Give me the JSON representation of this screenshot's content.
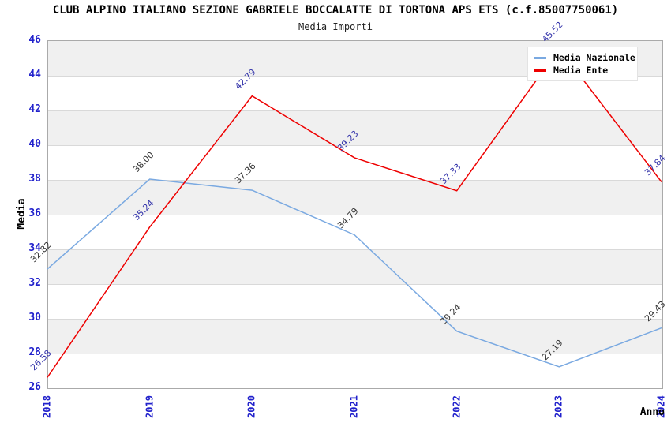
{
  "header": {
    "title": "CLUB ALPINO ITALIANO SEZIONE GABRIELE BOCCALATTE DI TORTONA APS ETS (c.f.85007750061)",
    "subtitle": "Media Importi"
  },
  "chart_data": {
    "type": "line",
    "title": "CLUB ALPINO ITALIANO SEZIONE GABRIELE BOCCALATTE DI TORTONA APS ETS (c.f.85007750061)",
    "subtitle": "Media Importi",
    "x": [
      2018,
      2019,
      2020,
      2021,
      2022,
      2023,
      2024
    ],
    "series": [
      {
        "name": "Media Nazionale",
        "color": "#7aa9e1",
        "label_color": "#333333",
        "values": [
          32.82,
          38.0,
          37.36,
          34.79,
          29.24,
          27.19,
          29.43
        ]
      },
      {
        "name": "Media Ente",
        "color": "#ee0000",
        "label_color": "#3333aa",
        "values": [
          26.58,
          35.24,
          42.79,
          39.23,
          37.33,
          45.52,
          37.84
        ]
      }
    ],
    "xlabel": "Anno",
    "ylabel": "Media",
    "ylim": [
      26,
      46
    ],
    "ytick_step": 2,
    "value_label_decimals": 2,
    "legend_position": "top-right",
    "grid": "alternating-horizontal-bands",
    "band_color": "#f0f0f0",
    "gridline_color": "#d9d9d9",
    "tick_label_color": "#2222cc",
    "plot_border_color": "#aaaaaa"
  }
}
